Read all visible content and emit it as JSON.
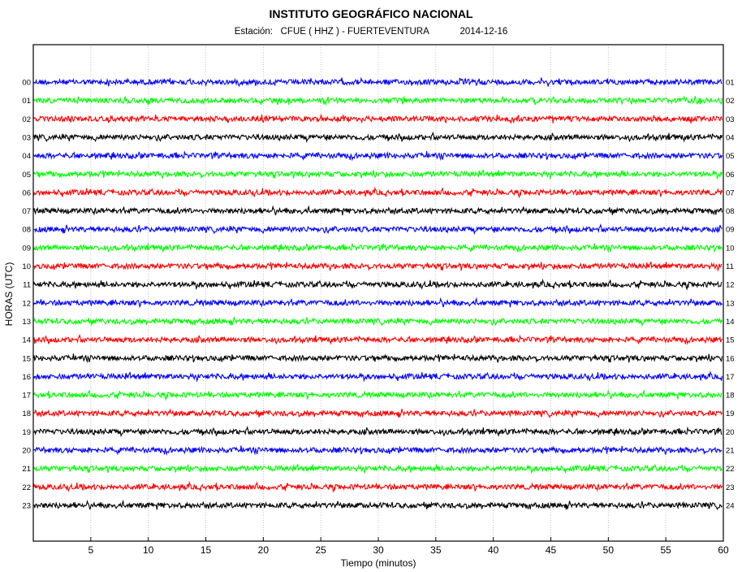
{
  "header": {
    "title": "INSTITUTO GEOGRÁFICO NACIONAL",
    "station_label": "Estación:",
    "station": "CFUE ( HHZ ) - FUERTEVENTURA",
    "date": "2014-12-16"
  },
  "chart_data": {
    "type": "line",
    "title": "INSTITUTO GEOGRÁFICO NACIONAL",
    "subtitle": "Estación:  CFUE ( HHZ ) - FUERTEVENTURA        2014-12-16",
    "xlabel": "Tiempo (minutos)",
    "ylabel": "HORAS (UTC)",
    "xlim": [
      0,
      60
    ],
    "xticks": [
      5,
      10,
      15,
      20,
      25,
      30,
      35,
      40,
      45,
      50,
      55,
      60
    ],
    "grid": "vertical dotted at each x tick",
    "left_hour_labels": [
      "00",
      "01",
      "02",
      "03",
      "04",
      "05",
      "06",
      "07",
      "08",
      "09",
      "10",
      "11",
      "12",
      "13",
      "14",
      "15",
      "16",
      "17",
      "18",
      "19",
      "20",
      "21",
      "22",
      "23"
    ],
    "right_hour_labels": [
      "01",
      "02",
      "03",
      "04",
      "05",
      "06",
      "07",
      "08",
      "09",
      "10",
      "11",
      "12",
      "13",
      "14",
      "15",
      "16",
      "17",
      "18",
      "19",
      "20",
      "21",
      "22",
      "23",
      "24"
    ],
    "trace_colors": [
      "#0000ff",
      "#00ff00",
      "#ff0000",
      "#000000"
    ],
    "trace_description": "24 continuous seismogram traces of background noise, one per hour, colors cycling blue, green, red, black"
  }
}
